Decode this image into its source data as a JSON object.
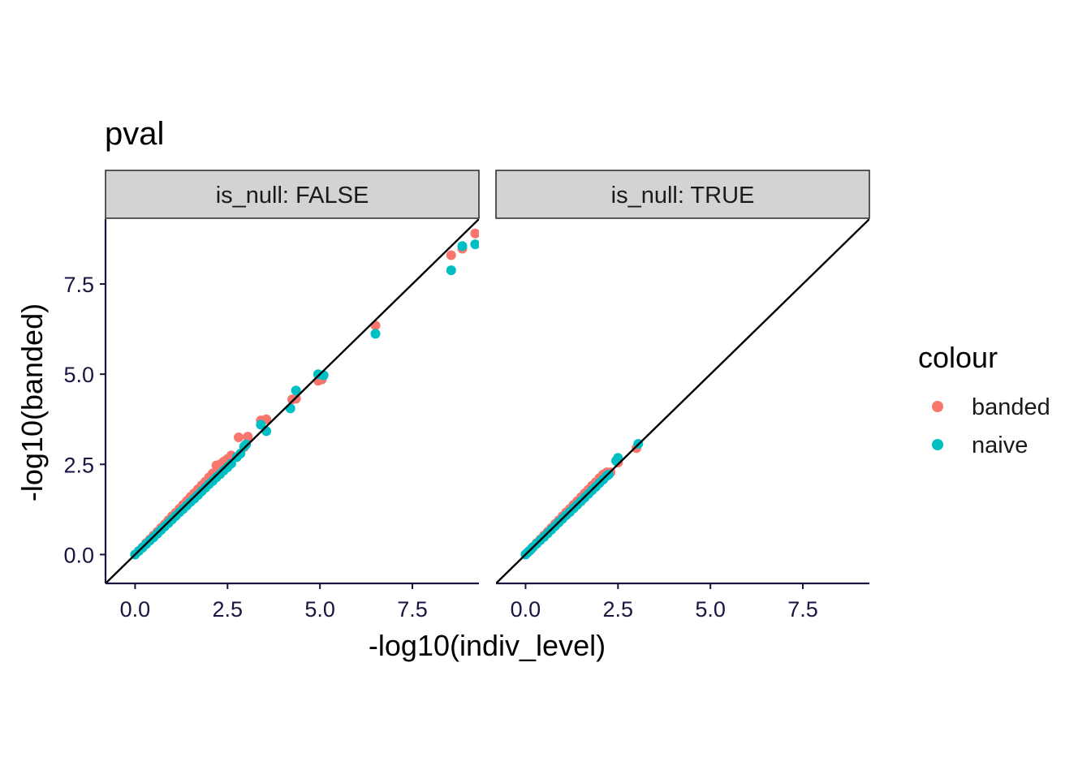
{
  "chart_data": {
    "type": "scatter",
    "title": "pval",
    "xlabel": "-log10(indiv_level)",
    "ylabel": "-log10(banded)",
    "xlim": [
      -0.8,
      9.3
    ],
    "ylim": [
      -0.8,
      9.3
    ],
    "x_ticks": [
      "0.0",
      "2.5",
      "5.0",
      "7.5"
    ],
    "y_ticks": [
      "0.0",
      "2.5",
      "5.0",
      "7.5"
    ],
    "reference_line": "y = x",
    "legend": {
      "title": "colour",
      "placement": "right",
      "entries": [
        {
          "label": "banded",
          "color": "#F8766D"
        },
        {
          "label": "naive",
          "color": "#00BFC4"
        }
      ]
    },
    "panels": [
      {
        "label": "is_null: FALSE",
        "series": [
          {
            "name": "banded",
            "color": "#F8766D",
            "points": [
              [
                0.0,
                0.0
              ],
              [
                0.1,
                0.1
              ],
              [
                0.2,
                0.2
              ],
              [
                0.3,
                0.32
              ],
              [
                0.4,
                0.42
              ],
              [
                0.5,
                0.53
              ],
              [
                0.6,
                0.63
              ],
              [
                0.7,
                0.74
              ],
              [
                0.8,
                0.84
              ],
              [
                0.9,
                0.95
              ],
              [
                1.0,
                1.06
              ],
              [
                1.1,
                1.16
              ],
              [
                1.2,
                1.27
              ],
              [
                1.3,
                1.38
              ],
              [
                1.4,
                1.49
              ],
              [
                1.5,
                1.6
              ],
              [
                1.6,
                1.7
              ],
              [
                1.7,
                1.81
              ],
              [
                1.8,
                1.92
              ],
              [
                1.9,
                2.02
              ],
              [
                2.0,
                2.14
              ],
              [
                2.1,
                2.25
              ],
              [
                2.2,
                2.47
              ],
              [
                2.3,
                2.5
              ],
              [
                2.4,
                2.58
              ],
              [
                2.5,
                2.65
              ],
              [
                2.6,
                2.75
              ],
              [
                2.8,
                3.25
              ],
              [
                3.05,
                3.27
              ],
              [
                2.95,
                2.98
              ],
              [
                3.4,
                3.72
              ],
              [
                3.55,
                3.75
              ],
              [
                4.25,
                4.3
              ],
              [
                4.35,
                4.32
              ],
              [
                4.95,
                4.82
              ],
              [
                5.05,
                4.85
              ],
              [
                6.5,
                6.35
              ],
              [
                8.55,
                8.3
              ],
              [
                8.85,
                8.48
              ],
              [
                9.2,
                8.9
              ]
            ]
          },
          {
            "name": "naive",
            "color": "#00BFC4",
            "points": [
              [
                0.0,
                0.0
              ],
              [
                0.1,
                0.1
              ],
              [
                0.2,
                0.19
              ],
              [
                0.3,
                0.29
              ],
              [
                0.4,
                0.39
              ],
              [
                0.5,
                0.48
              ],
              [
                0.6,
                0.58
              ],
              [
                0.7,
                0.68
              ],
              [
                0.8,
                0.78
              ],
              [
                0.9,
                0.87
              ],
              [
                1.0,
                0.97
              ],
              [
                1.1,
                1.07
              ],
              [
                1.2,
                1.17
              ],
              [
                1.3,
                1.26
              ],
              [
                1.4,
                1.36
              ],
              [
                1.5,
                1.46
              ],
              [
                1.6,
                1.55
              ],
              [
                1.7,
                1.65
              ],
              [
                1.8,
                1.75
              ],
              [
                1.9,
                1.85
              ],
              [
                2.0,
                1.95
              ],
              [
                2.1,
                2.04
              ],
              [
                2.2,
                2.14
              ],
              [
                2.3,
                2.23
              ],
              [
                2.4,
                2.33
              ],
              [
                2.5,
                2.42
              ],
              [
                2.6,
                2.52
              ],
              [
                2.75,
                2.7
              ],
              [
                2.85,
                2.8
              ],
              [
                2.95,
                3.0
              ],
              [
                3.0,
                3.05
              ],
              [
                3.4,
                3.6
              ],
              [
                3.55,
                3.42
              ],
              [
                4.2,
                4.05
              ],
              [
                4.35,
                4.55
              ],
              [
                4.95,
                5.0
              ],
              [
                5.1,
                4.97
              ],
              [
                6.5,
                6.12
              ],
              [
                8.55,
                7.88
              ],
              [
                8.85,
                8.55
              ],
              [
                9.2,
                8.6
              ]
            ]
          }
        ]
      },
      {
        "label": "is_null: TRUE",
        "series": [
          {
            "name": "banded",
            "color": "#F8766D",
            "points": [
              [
                0.0,
                0.0
              ],
              [
                0.1,
                0.1
              ],
              [
                0.2,
                0.21
              ],
              [
                0.3,
                0.32
              ],
              [
                0.4,
                0.42
              ],
              [
                0.5,
                0.53
              ],
              [
                0.6,
                0.63
              ],
              [
                0.7,
                0.74
              ],
              [
                0.8,
                0.85
              ],
              [
                0.9,
                0.95
              ],
              [
                1.0,
                1.06
              ],
              [
                1.1,
                1.17
              ],
              [
                1.2,
                1.27
              ],
              [
                1.3,
                1.38
              ],
              [
                1.4,
                1.48
              ],
              [
                1.5,
                1.59
              ],
              [
                1.6,
                1.7
              ],
              [
                1.7,
                1.8
              ],
              [
                1.8,
                1.91
              ],
              [
                1.9,
                2.01
              ],
              [
                2.0,
                2.12
              ],
              [
                2.1,
                2.22
              ],
              [
                2.2,
                2.28
              ],
              [
                2.3,
                2.28
              ],
              [
                2.5,
                2.55
              ],
              [
                3.0,
                2.95
              ]
            ]
          },
          {
            "name": "naive",
            "color": "#00BFC4",
            "points": [
              [
                0.0,
                0.0
              ],
              [
                0.05,
                0.05
              ],
              [
                0.1,
                0.1
              ],
              [
                0.15,
                0.15
              ],
              [
                0.2,
                0.2
              ],
              [
                0.3,
                0.3
              ],
              [
                0.4,
                0.4
              ],
              [
                0.5,
                0.49
              ],
              [
                0.6,
                0.59
              ],
              [
                0.7,
                0.69
              ],
              [
                0.8,
                0.79
              ],
              [
                0.9,
                0.89
              ],
              [
                1.0,
                0.99
              ],
              [
                1.1,
                1.09
              ],
              [
                1.2,
                1.18
              ],
              [
                1.3,
                1.28
              ],
              [
                1.4,
                1.38
              ],
              [
                1.5,
                1.48
              ],
              [
                1.6,
                1.58
              ],
              [
                1.7,
                1.68
              ],
              [
                1.8,
                1.78
              ],
              [
                1.9,
                1.88
              ],
              [
                2.0,
                1.98
              ],
              [
                2.1,
                2.08
              ],
              [
                2.2,
                2.18
              ],
              [
                2.25,
                2.22
              ],
              [
                2.45,
                2.6
              ],
              [
                2.5,
                2.68
              ],
              [
                3.05,
                3.07
              ]
            ]
          }
        ]
      }
    ]
  }
}
